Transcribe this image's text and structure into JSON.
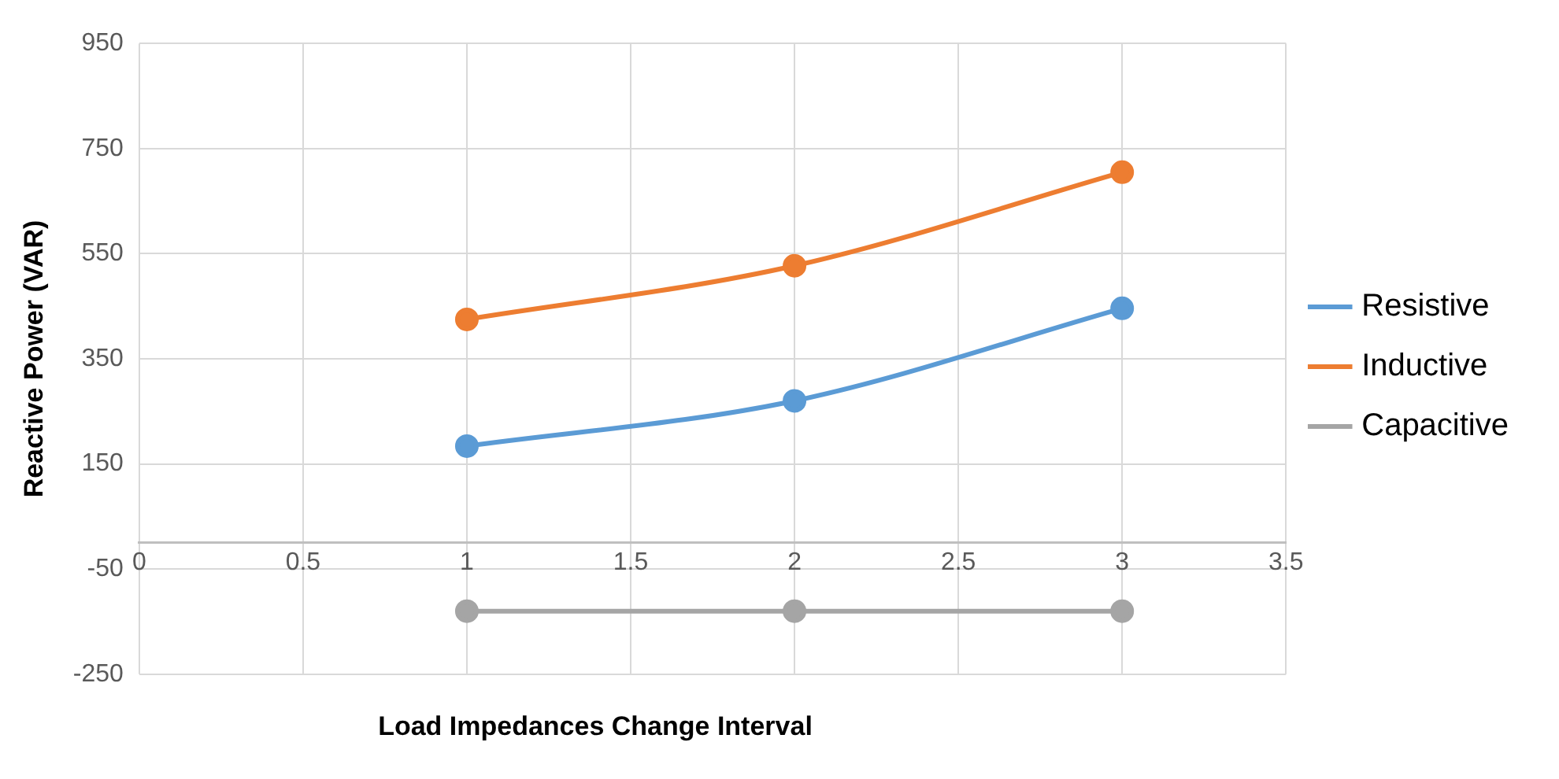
{
  "chart_data": {
    "type": "line",
    "xlabel": "Load Impedances Change Interval",
    "ylabel": "Reactive Power (VAR)",
    "x": [
      1,
      2,
      3
    ],
    "series": [
      {
        "name": "Resistive",
        "color": "#5b9bd5",
        "values": [
          184,
          270,
          446
        ]
      },
      {
        "name": "Inductive",
        "color": "#ed7d31",
        "values": [
          425,
          527,
          705
        ]
      },
      {
        "name": "Capacitive",
        "color": "#a5a5a5",
        "values": [
          -130,
          -130,
          -130
        ]
      }
    ],
    "xlim": [
      0,
      3.5
    ],
    "xticks": [
      0,
      0.5,
      1,
      1.5,
      2,
      2.5,
      3,
      3.5
    ],
    "ylim": [
      -250,
      950
    ],
    "yticks": [
      -250,
      -50,
      150,
      350,
      550,
      750,
      950
    ],
    "grid": true,
    "legend": "right",
    "marker": "circle",
    "line_style": "solid"
  }
}
